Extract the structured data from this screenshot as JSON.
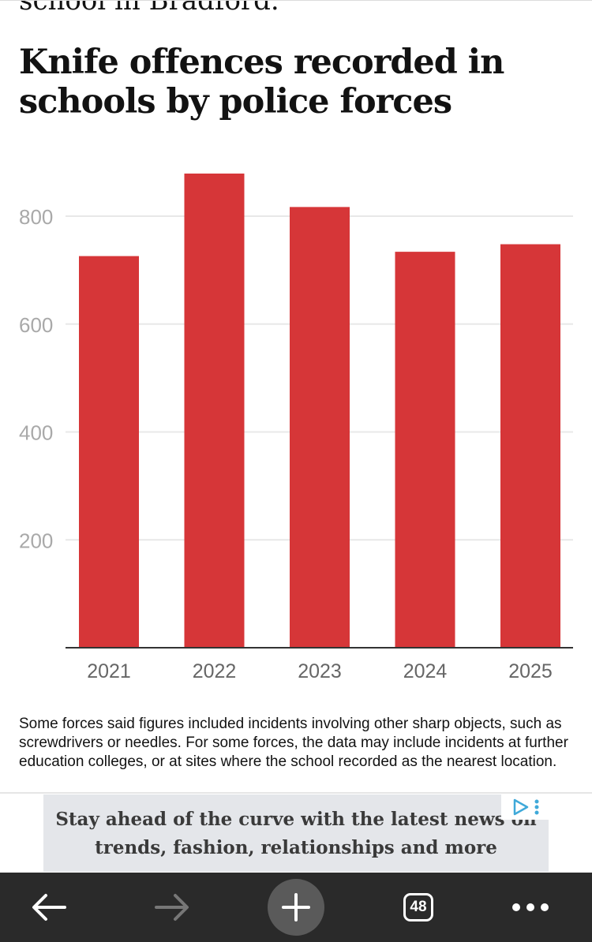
{
  "article": {
    "previous_text": "school in Bradford.",
    "chart_title": "Knife offences recorded in schools by police forces",
    "caption": "Some forces said figures included incidents involving other sharp objects, such as screwdrivers or needles. For some forces, the data may include incidents at further education colleges, or at sites where the school recorded as the nearest location."
  },
  "chart_data": {
    "type": "bar",
    "title": "Knife offences recorded in schools by police forces",
    "xlabel": "",
    "ylabel": "",
    "categories": [
      "2021",
      "2022",
      "2023",
      "2024",
      "2025"
    ],
    "values": [
      726,
      879,
      817,
      734,
      748
    ],
    "ylim": [
      0,
      800
    ],
    "yticks": [
      200,
      400,
      600,
      800
    ],
    "grid": true,
    "colors": {
      "bar": "#d63638",
      "grid": "#e8e8e8",
      "axis": "#333333",
      "tick_label": "#a9a9a9",
      "category_label": "#666666"
    }
  },
  "ad": {
    "text": "Stay ahead of the curve with the latest news on trends, fashion, relationships and more",
    "badge_color": "#3fa9d9"
  },
  "browser_nav": {
    "tab_count": "48",
    "icons": [
      "back-arrow-icon",
      "forward-arrow-icon",
      "plus-icon",
      "tabs-icon",
      "more-dots-icon"
    ]
  }
}
